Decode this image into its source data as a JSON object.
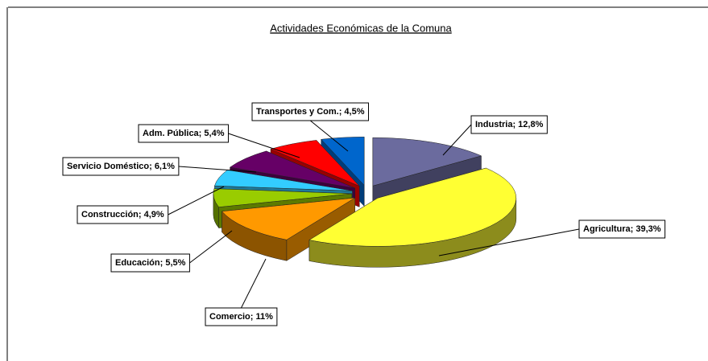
{
  "chart_data": {
    "type": "pie",
    "title": "Actividades Económicas de la Comuna",
    "values": [
      12.8,
      39.3,
      11,
      5.5,
      4.9,
      6.1,
      5.4,
      4.5
    ],
    "value_labels": [
      "Industria; 12,8%",
      "Agricultura; 39,3%",
      "Comercio; 11%",
      "Educación; 5,5%",
      "Construcción; 4,9%",
      "Servicio Doméstico; 6,1%",
      "Adm. Pública; 5,4%",
      "Transportes y Com.; 4,5%"
    ],
    "colors": [
      "#6b6b9e",
      "#ffff33",
      "#ff9900",
      "#99cc00",
      "#33ccff",
      "#660066",
      "#ff0000",
      "#0066cc"
    ]
  }
}
